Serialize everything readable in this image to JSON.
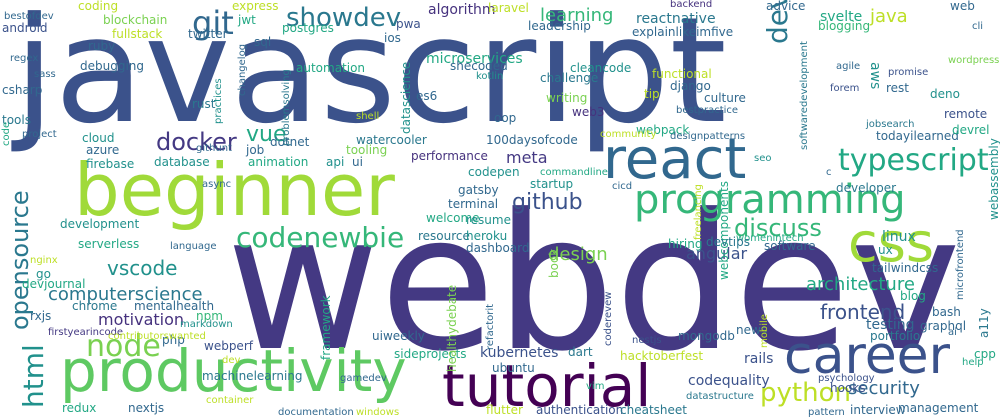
{
  "words": [
    {
      "text": "webdev",
      "color": "#443983"
    },
    {
      "text": "javascript",
      "color": "#3b528b"
    },
    {
      "text": "beginner",
      "color": "#a0da39"
    },
    {
      "text": "react",
      "color": "#31688e"
    },
    {
      "text": "productivity",
      "color": "#5ec962"
    },
    {
      "text": "career",
      "color": "#3b528b"
    },
    {
      "text": "tutorial",
      "color": "#440154"
    },
    {
      "text": "css",
      "color": "#a0da39"
    },
    {
      "text": "programming",
      "color": "#35b779"
    },
    {
      "text": "typescript",
      "color": "#22a884"
    },
    {
      "text": "showdev",
      "color": "#2a788e"
    },
    {
      "text": "codenewbie",
      "color": "#35b779"
    },
    {
      "text": "git",
      "color": "#31688e"
    },
    {
      "text": "devops",
      "color": "#2a788e"
    },
    {
      "text": "docker",
      "color": "#443983"
    },
    {
      "text": "node",
      "color": "#7ad151"
    },
    {
      "text": "python",
      "color": "#bddf26"
    },
    {
      "text": "html",
      "color": "#21918c"
    },
    {
      "text": "opensource",
      "color": "#2a788e"
    },
    {
      "text": "discuss",
      "color": "#35b779"
    },
    {
      "text": "github",
      "color": "#3b528b"
    },
    {
      "text": "vue",
      "color": "#22a884"
    },
    {
      "text": "computerscience",
      "color": "#2a788e"
    },
    {
      "text": "vscode",
      "color": "#21918c"
    },
    {
      "text": "frontend",
      "color": "#3b528b"
    },
    {
      "text": "architecture",
      "color": "#22a884"
    },
    {
      "text": "design",
      "color": "#7ad151"
    },
    {
      "text": "security",
      "color": "#31688e"
    },
    {
      "text": "motivation",
      "color": "#46327e"
    },
    {
      "text": "learning",
      "color": "#35b779"
    },
    {
      "text": "java",
      "color": "#bddf26"
    },
    {
      "text": "aws",
      "color": "#21918c"
    },
    {
      "text": "angular",
      "color": "#3b528b"
    },
    {
      "text": "kubernetes",
      "color": "#3b528b"
    },
    {
      "text": "testing",
      "color": "#31688e"
    },
    {
      "text": "rails",
      "color": "#3b528b"
    },
    {
      "text": "linux",
      "color": "#21918c"
    },
    {
      "text": "algorithm",
      "color": "#46327e"
    },
    {
      "text": "meta",
      "color": "#443983"
    },
    {
      "text": "reactnative",
      "color": "#2a788e"
    },
    {
      "text": "svelte",
      "color": "#22a884"
    },
    {
      "text": "codequality",
      "color": "#3b528b"
    },
    {
      "text": "a11y",
      "color": "#2a788e"
    },
    {
      "text": "interview",
      "color": "#31688e"
    },
    {
      "text": "microservices",
      "color": "#22a884"
    },
    {
      "text": "graphql",
      "color": "#31688e"
    },
    {
      "text": "performance",
      "color": "#46327e"
    },
    {
      "text": "blockchain",
      "color": "#7ad151"
    },
    {
      "text": "fullstack",
      "color": "#bddf26"
    },
    {
      "text": "cloud",
      "color": "#21918c"
    },
    {
      "text": "rust",
      "color": "#2a788e"
    },
    {
      "text": "dotnet",
      "color": "#31688e"
    },
    {
      "text": "database",
      "color": "#21918c"
    },
    {
      "text": "serverless",
      "color": "#22a884"
    },
    {
      "text": "development",
      "color": "#21918c"
    },
    {
      "text": "tailwindcss",
      "color": "#31688e"
    },
    {
      "text": "nextjs",
      "color": "#31688e"
    },
    {
      "text": "redux",
      "color": "#22a884"
    },
    {
      "text": "webassembly",
      "color": "#21918c"
    },
    {
      "text": "machinelearning",
      "color": "#2a788e"
    },
    {
      "text": "watercooler",
      "color": "#2a788e"
    },
    {
      "text": "100daysofcode",
      "color": "#31688e"
    },
    {
      "text": "coding",
      "color": "#bddf26"
    },
    {
      "text": "csharp",
      "color": "#31688e"
    },
    {
      "text": "firebase",
      "color": "#21918c"
    },
    {
      "text": "webcomponents",
      "color": "#22a884"
    },
    {
      "text": "hooks",
      "color": "#3b528b"
    },
    {
      "text": "flutter",
      "color": "#bddf26"
    },
    {
      "text": "authentication",
      "color": "#3b528b"
    },
    {
      "text": "cheatsheet",
      "color": "#2a788e"
    },
    {
      "text": "datastructure",
      "color": "#2a788e"
    },
    {
      "text": "management",
      "color": "#31688e"
    },
    {
      "text": "hacktoberfest",
      "color": "#bddf26"
    },
    {
      "text": "sideprojects",
      "color": "#22a884"
    },
    {
      "text": "uiweekly",
      "color": "#31688e"
    },
    {
      "text": "webperf",
      "color": "#3b528b"
    },
    {
      "text": "mongodb",
      "color": "#31688e"
    },
    {
      "text": "dart",
      "color": "#2a788e"
    },
    {
      "text": "ubuntu",
      "color": "#31688e"
    },
    {
      "text": "npm",
      "color": "#35b779"
    },
    {
      "text": "markdown",
      "color": "#21918c"
    },
    {
      "text": "php",
      "color": "#31688e"
    },
    {
      "text": "chrome",
      "color": "#2a788e"
    },
    {
      "text": "mentalhealth",
      "color": "#31688e"
    },
    {
      "text": "devjournal",
      "color": "#22a884"
    },
    {
      "text": "go",
      "color": "#21918c"
    },
    {
      "text": "nginx",
      "color": "#bddf26"
    },
    {
      "text": "rxjs",
      "color": "#31688e"
    },
    {
      "text": "firstyearincode",
      "color": "#443983"
    },
    {
      "text": "healthydebate",
      "color": "#7ad151"
    },
    {
      "text": "framework",
      "color": "#22a884"
    },
    {
      "text": "refactorit",
      "color": "#31688e"
    },
    {
      "text": "coderevew",
      "color": "#3b528b"
    },
    {
      "text": "nestjs",
      "color": "#3b528b"
    },
    {
      "text": "news",
      "color": "#31688e"
    },
    {
      "text": "blog",
      "color": "#22a884"
    },
    {
      "text": "bash",
      "color": "#31688e"
    },
    {
      "text": "cpp",
      "color": "#22a884"
    },
    {
      "text": "portfolio",
      "color": "#2a788e"
    },
    {
      "text": "womenintech",
      "color": "#22a884"
    },
    {
      "text": "ux",
      "color": "#21918c"
    },
    {
      "text": "software",
      "color": "#31688e"
    },
    {
      "text": "devtips",
      "color": "#2a788e"
    },
    {
      "text": "hiring",
      "color": "#22a884"
    },
    {
      "text": "book",
      "color": "#7ad151"
    },
    {
      "text": "resource",
      "color": "#2a788e"
    },
    {
      "text": "heroku",
      "color": "#21918c"
    },
    {
      "text": "dashboard",
      "color": "#31688e"
    },
    {
      "text": "terminal",
      "color": "#31688e"
    },
    {
      "text": "welcome",
      "color": "#22a884"
    },
    {
      "text": "resume",
      "color": "#21918c"
    },
    {
      "text": "gatsby",
      "color": "#31688e"
    },
    {
      "text": "codepen",
      "color": "#21918c"
    },
    {
      "text": "startup",
      "color": "#21918c"
    },
    {
      "text": "developer",
      "color": "#2a788e"
    },
    {
      "text": "todayilearned",
      "color": "#31688e"
    },
    {
      "text": "remote",
      "color": "#3b528b"
    },
    {
      "text": "deno",
      "color": "#21918c"
    },
    {
      "text": "devrel",
      "color": "#22a884"
    },
    {
      "text": "culture",
      "color": "#31688e"
    },
    {
      "text": "django",
      "color": "#31688e"
    },
    {
      "text": "tip",
      "color": "#bddf26"
    },
    {
      "text": "functional",
      "color": "#bddf26"
    },
    {
      "text": "writing",
      "color": "#7ad151"
    },
    {
      "text": "challenge",
      "color": "#2a788e"
    },
    {
      "text": "cleancode",
      "color": "#21918c"
    },
    {
      "text": "rest",
      "color": "#31688e"
    },
    {
      "text": "blogging",
      "color": "#35b779"
    },
    {
      "text": "leadership",
      "color": "#31688e"
    },
    {
      "text": "explainlikeimfive",
      "color": "#31688e"
    },
    {
      "text": "advice",
      "color": "#31688e"
    },
    {
      "text": "web",
      "color": "#31688e"
    },
    {
      "text": "backend",
      "color": "#46327e"
    },
    {
      "text": "pwa",
      "color": "#3b528b"
    },
    {
      "text": "ios",
      "color": "#31688e"
    },
    {
      "text": "laravel",
      "color": "#bddf26"
    },
    {
      "text": "express",
      "color": "#bddf26"
    },
    {
      "text": "jwt",
      "color": "#22a884"
    },
    {
      "text": "sql",
      "color": "#31688e"
    },
    {
      "text": "postgres",
      "color": "#22a884"
    },
    {
      "text": "twitter",
      "color": "#31688e"
    },
    {
      "text": "android",
      "color": "#3b528b"
    },
    {
      "text": "bestofdev",
      "color": "#31688e"
    },
    {
      "text": "ruby",
      "color": "#31688e"
    },
    {
      "text": "debugging",
      "color": "#31688e"
    },
    {
      "text": "regex",
      "color": "#31688e"
    },
    {
      "text": "sass",
      "color": "#31688e"
    },
    {
      "text": "tools",
      "color": "#2a788e"
    },
    {
      "text": "project",
      "color": "#31688e"
    },
    {
      "text": "code",
      "color": "#22a884"
    },
    {
      "text": "azure",
      "color": "#31688e"
    },
    {
      "text": "githunt",
      "color": "#31688e"
    },
    {
      "text": "job",
      "color": "#31688e"
    },
    {
      "text": "animation",
      "color": "#22a884"
    },
    {
      "text": "api",
      "color": "#21918c"
    },
    {
      "text": "ui",
      "color": "#31688e"
    },
    {
      "text": "tooling",
      "color": "#7ad151"
    },
    {
      "text": "automation",
      "color": "#22a884"
    },
    {
      "text": "shecoded",
      "color": "#31688e"
    },
    {
      "text": "kotlin",
      "color": "#21918c"
    },
    {
      "text": "es6",
      "color": "#31688e"
    },
    {
      "text": "oop",
      "color": "#31688e"
    },
    {
      "text": "datascience",
      "color": "#21918c"
    },
    {
      "text": "shell",
      "color": "#bddf26"
    },
    {
      "text": "commandline",
      "color": "#22a884"
    },
    {
      "text": "web3",
      "color": "#46327e"
    },
    {
      "text": "webpack",
      "color": "#22a884"
    },
    {
      "text": "community",
      "color": "#bddf26"
    },
    {
      "text": "designpatterns",
      "color": "#31688e"
    },
    {
      "text": "bestpractice",
      "color": "#31688e"
    },
    {
      "text": "seo",
      "color": "#21918c"
    },
    {
      "text": "cicd",
      "color": "#31688e"
    },
    {
      "text": "agile",
      "color": "#31688e"
    },
    {
      "text": "forem",
      "color": "#3b528b"
    },
    {
      "text": "promise",
      "color": "#3b528b"
    },
    {
      "text": "wordpress",
      "color": "#7ad151"
    },
    {
      "text": "jobsearch",
      "color": "#2a788e"
    },
    {
      "text": "softwaredevelopment",
      "color": "#2a788e"
    },
    {
      "text": "cli",
      "color": "#31688e"
    },
    {
      "text": "problemsolving",
      "color": "#2a788e"
    },
    {
      "text": "changelog",
      "color": "#31688e"
    },
    {
      "text": "practices",
      "color": "#21918c"
    },
    {
      "text": "async",
      "color": "#31688e"
    },
    {
      "text": "language",
      "color": "#31688e"
    },
    {
      "text": "freelancing",
      "color": "#bddf26"
    },
    {
      "text": "microfrontend",
      "color": "#31688e"
    },
    {
      "text": "mobile",
      "color": "#bddf26"
    },
    {
      "text": "psychology",
      "color": "#3b528b"
    },
    {
      "text": "ai",
      "color": "#31688e"
    },
    {
      "text": "help",
      "color": "#22a884"
    },
    {
      "text": "pattern",
      "color": "#31688e"
    },
    {
      "text": "documentation",
      "color": "#31688e"
    },
    {
      "text": "windows",
      "color": "#bddf26"
    },
    {
      "text": "container",
      "color": "#bddf26"
    },
    {
      "text": "dev",
      "color": "#bddf26"
    },
    {
      "text": "gamedev",
      "color": "#31688e"
    },
    {
      "text": "vim",
      "color": "#22a884"
    },
    {
      "text": "contributorswanted",
      "color": "#bddf26"
    },
    {
      "text": "c",
      "color": "#31688e"
    }
  ]
}
